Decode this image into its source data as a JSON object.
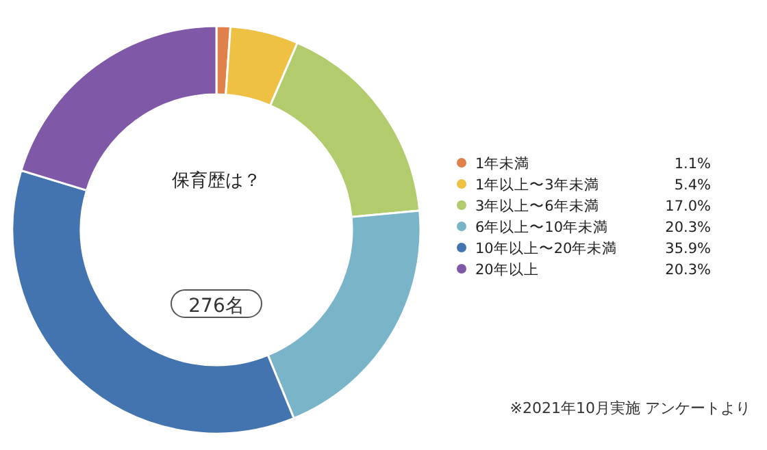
{
  "chart_data": {
    "type": "donut",
    "title": "保育歴は？",
    "categories": [
      "1年未満",
      "1年以上〜3年未満",
      "3年以上〜6年未満",
      "6年以上〜10年未満",
      "10年以上〜20年未満",
      "20年以上"
    ],
    "values": [
      1.1,
      5.4,
      17.0,
      20.3,
      35.9,
      20.3
    ],
    "value_labels": [
      "1.1%",
      "5.4%",
      "17.0%",
      "20.3%",
      "35.9%",
      "20.3%"
    ],
    "colors": [
      "#e0804a",
      "#eec044",
      "#b2cb6c",
      "#7ab4c8",
      "#4374b0",
      "#7f58a8"
    ],
    "annotations": [
      "276名",
      "※2021年10月実施 アンケートより"
    ],
    "legend": "right"
  }
}
